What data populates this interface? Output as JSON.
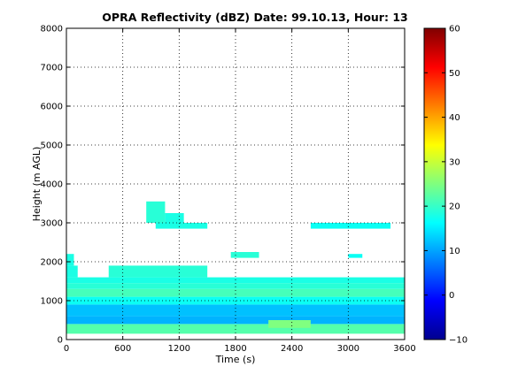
{
  "chart_data": {
    "type": "heatmap",
    "title": "OPRA Reflectivity (dBZ)  Date: 99.10.13, Hour: 13",
    "xlabel": "Time (s)",
    "ylabel": "Height (m AGL)",
    "xlim": [
      0,
      3600
    ],
    "ylim": [
      0,
      8000
    ],
    "x_ticks": [
      0,
      600,
      1200,
      1800,
      2400,
      3000,
      3600
    ],
    "y_ticks": [
      0,
      1000,
      2000,
      3000,
      4000,
      5000,
      6000,
      7000,
      8000
    ],
    "grid": true,
    "colormap": "jet",
    "colorbar": {
      "range": [
        -10,
        60
      ],
      "ticks": [
        -10,
        0,
        10,
        20,
        30,
        40,
        50,
        60
      ]
    },
    "bands": [
      {
        "y0": 150,
        "y1": 400,
        "x0": 0,
        "x1": 3600,
        "value": 22
      },
      {
        "y0": 400,
        "y1": 600,
        "x0": 0,
        "x1": 3600,
        "value": 11
      },
      {
        "y0": 600,
        "y1": 900,
        "x0": 0,
        "x1": 3600,
        "value": 12
      },
      {
        "y0": 900,
        "y1": 1100,
        "x0": 0,
        "x1": 3600,
        "value": 17
      },
      {
        "y0": 1100,
        "y1": 1300,
        "x0": 0,
        "x1": 3600,
        "value": 21
      },
      {
        "y0": 1300,
        "y1": 1450,
        "x0": 0,
        "x1": 3600,
        "value": 19
      },
      {
        "y0": 1450,
        "y1": 1600,
        "x0": 0,
        "x1": 3600,
        "value": 18
      },
      {
        "y0": 300,
        "y1": 500,
        "x0": 2150,
        "x1": 2600,
        "value": 25
      },
      {
        "y0": 1600,
        "y1": 1900,
        "x0": 0,
        "x1": 120,
        "value": 18
      },
      {
        "y0": 1600,
        "y1": 1900,
        "x0": 450,
        "x1": 1500,
        "value": 19
      },
      {
        "y0": 1900,
        "y1": 2200,
        "x0": 0,
        "x1": 80,
        "value": 18
      },
      {
        "y0": 2100,
        "y1": 2250,
        "x0": 1750,
        "x1": 2050,
        "value": 19
      },
      {
        "y0": 2100,
        "y1": 2200,
        "x0": 3000,
        "x1": 3150,
        "value": 17
      },
      {
        "y0": 2850,
        "y1": 3000,
        "x0": 950,
        "x1": 1500,
        "value": 18
      },
      {
        "y0": 2850,
        "y1": 3000,
        "x0": 2600,
        "x1": 3450,
        "value": 17
      },
      {
        "y0": 3000,
        "y1": 3550,
        "x0": 850,
        "x1": 1050,
        "value": 19
      },
      {
        "y0": 3000,
        "y1": 3250,
        "x0": 1050,
        "x1": 1250,
        "value": 18
      }
    ]
  }
}
